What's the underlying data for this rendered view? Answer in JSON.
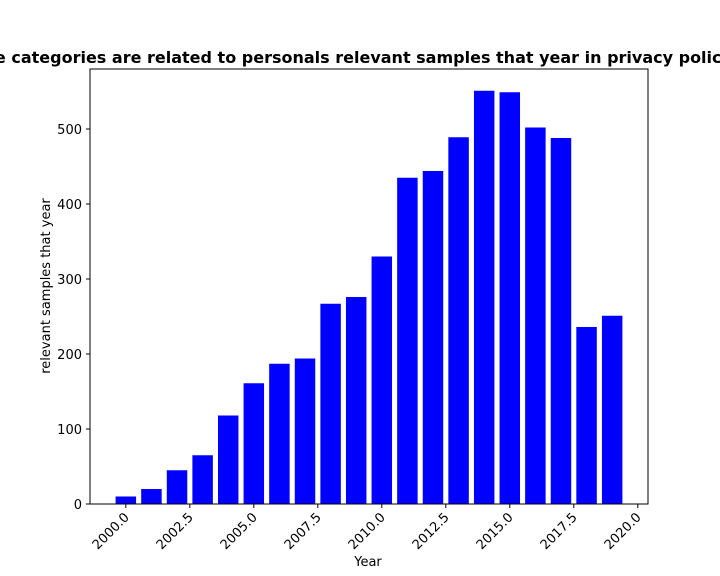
{
  "chart_data": {
    "type": "bar",
    "title": "The categories are related to personals relevant samples that year in privacy policies",
    "xlabel": "Year",
    "ylabel": "relevant samples that year",
    "x": [
      2000,
      2001,
      2002,
      2003,
      2004,
      2005,
      2006,
      2007,
      2008,
      2009,
      2010,
      2011,
      2012,
      2013,
      2014,
      2015,
      2016,
      2017,
      2018,
      2019
    ],
    "values": [
      10,
      20,
      45,
      65,
      118,
      161,
      187,
      194,
      267,
      276,
      330,
      435,
      444,
      489,
      551,
      549,
      502,
      488,
      236,
      251
    ],
    "xlim": [
      1998.6,
      2020.4
    ],
    "ylim": [
      0,
      580
    ],
    "xticks": [
      2000.0,
      2002.5,
      2005.0,
      2007.5,
      2010.0,
      2012.5,
      2015.0,
      2017.5,
      2020.0
    ],
    "xtick_labels": [
      "2000.0",
      "2002.5",
      "2005.0",
      "2007.5",
      "2010.0",
      "2012.5",
      "2015.0",
      "2017.5",
      "2020.0"
    ],
    "yticks": [
      0,
      100,
      200,
      300,
      400,
      500
    ],
    "ytick_labels": [
      "0",
      "100",
      "200",
      "300",
      "400",
      "500"
    ],
    "bar_width": 0.8,
    "bar_color": "#0000ff",
    "grid": false,
    "legend": "none"
  }
}
